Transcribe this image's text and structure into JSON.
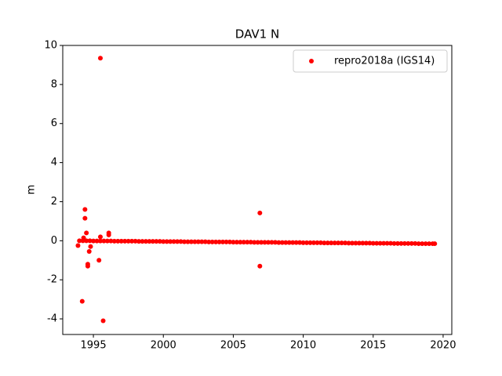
{
  "chart_data": {
    "type": "scatter",
    "title": "DAV1 N",
    "y_label": "m",
    "xlim": [
      1992.81,
      2020.62
    ],
    "ylim": [
      -4.8,
      10
    ],
    "xticks": [
      1995,
      2000,
      2005,
      2010,
      2015,
      2020
    ],
    "yticks": [
      -4,
      -2,
      0,
      2,
      4,
      6,
      8,
      10
    ],
    "legend_position": "upper right",
    "series": [
      {
        "name": "repro2018a (IGS14)",
        "color": "#ff0000",
        "x": [
          1994,
          1994.25,
          1994.5,
          1994.75,
          1995,
          1995.25,
          1995.5,
          1995.75,
          1996,
          1996.25,
          1996.5,
          1996.75,
          1997,
          1997.25,
          1997.5,
          1997.75,
          1998,
          1998.25,
          1998.5,
          1998.75,
          1999,
          1999.25,
          1999.5,
          1999.75,
          2000,
          2000.25,
          2000.5,
          2000.75,
          2001,
          2001.25,
          2001.5,
          2001.75,
          2002,
          2002.25,
          2002.5,
          2002.75,
          2003,
          2003.25,
          2003.5,
          2003.75,
          2004,
          2004.25,
          2004.5,
          2004.75,
          2005,
          2005.25,
          2005.5,
          2005.75,
          2006,
          2006.25,
          2006.5,
          2006.75,
          2007,
          2007.25,
          2007.5,
          2007.75,
          2008,
          2008.25,
          2008.5,
          2008.75,
          2009,
          2009.25,
          2009.5,
          2009.75,
          2010,
          2010.25,
          2010.5,
          2010.75,
          2011,
          2011.25,
          2011.5,
          2011.75,
          2012,
          2012.25,
          2012.5,
          2012.75,
          2013,
          2013.25,
          2013.5,
          2013.75,
          2014,
          2014.25,
          2014.5,
          2014.75,
          2015,
          2015.25,
          2015.5,
          2015.75,
          2016,
          2016.25,
          2016.5,
          2016.75,
          2017,
          2017.25,
          2017.5,
          2017.75,
          2018,
          2018.25,
          2018.5,
          2018.75,
          2019,
          2019.25,
          2019.4,
          1995.5,
          1994.4,
          1994.4,
          1994.2,
          1995.7,
          1995.4,
          1994.6,
          1994.6,
          1994.7,
          1994.5,
          1996.1,
          1996.1,
          1995.5,
          1993.9,
          1994.3,
          1994.8,
          2006.9,
          2006.9
        ],
        "values": [
          0,
          0,
          0,
          0,
          -0.01,
          -0.01,
          -0.01,
          -0.01,
          -0.01,
          -0.01,
          -0.02,
          -0.02,
          -0.02,
          -0.02,
          -0.02,
          -0.02,
          -0.02,
          -0.03,
          -0.03,
          -0.03,
          -0.03,
          -0.03,
          -0.03,
          -0.03,
          -0.04,
          -0.04,
          -0.04,
          -0.04,
          -0.04,
          -0.04,
          -0.05,
          -0.05,
          -0.05,
          -0.05,
          -0.05,
          -0.05,
          -0.05,
          -0.06,
          -0.06,
          -0.06,
          -0.06,
          -0.06,
          -0.06,
          -0.06,
          -0.07,
          -0.07,
          -0.07,
          -0.07,
          -0.07,
          -0.07,
          -0.08,
          -0.08,
          -0.08,
          -0.08,
          -0.08,
          -0.08,
          -0.08,
          -0.09,
          -0.09,
          -0.09,
          -0.09,
          -0.09,
          -0.09,
          -0.09,
          -0.1,
          -0.1,
          -0.1,
          -0.1,
          -0.1,
          -0.1,
          -0.11,
          -0.11,
          -0.11,
          -0.11,
          -0.11,
          -0.11,
          -0.11,
          -0.12,
          -0.12,
          -0.12,
          -0.12,
          -0.12,
          -0.12,
          -0.12,
          -0.13,
          -0.13,
          -0.13,
          -0.13,
          -0.13,
          -0.13,
          -0.14,
          -0.14,
          -0.14,
          -0.14,
          -0.14,
          -0.14,
          -0.14,
          -0.15,
          -0.15,
          -0.15,
          -0.15,
          -0.15,
          -0.15,
          9.35,
          1.6,
          1.15,
          -3.1,
          -4.1,
          -1.0,
          -1.2,
          -1.3,
          -0.55,
          0.4,
          0.4,
          0.3,
          0.2,
          -0.25,
          0.15,
          -0.3,
          1.42,
          -1.3
        ]
      }
    ]
  }
}
